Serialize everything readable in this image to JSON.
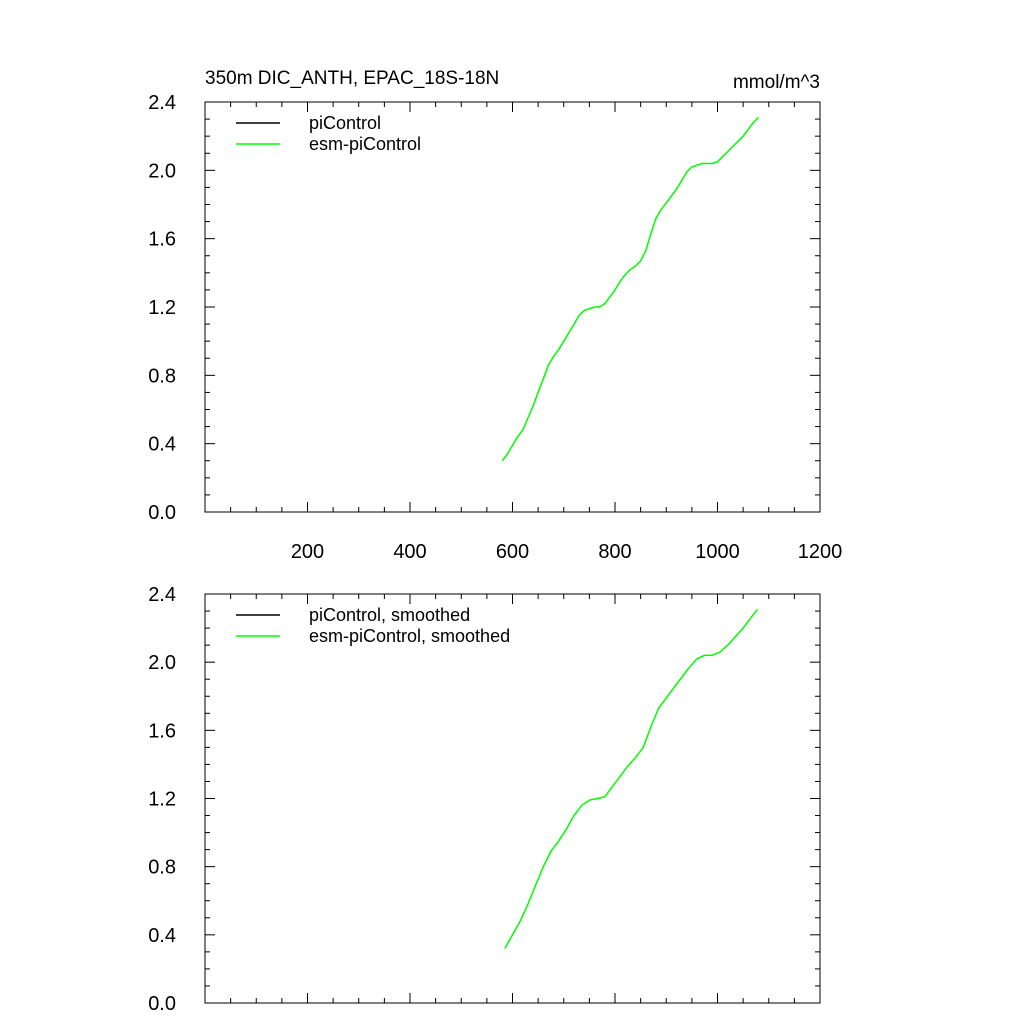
{
  "figure": {
    "title": "350m DIC_ANTH, EPAC_18S-18N",
    "units": "mmol/m^3"
  },
  "chart_data": [
    {
      "type": "line",
      "title": "350m DIC_ANTH, EPAC_18S-18N",
      "units_label": "mmol/m^3",
      "xlabel": "",
      "ylabel": "",
      "xlim": [
        0,
        1200
      ],
      "ylim": [
        0,
        2.4
      ],
      "x_ticks": [
        200,
        400,
        600,
        800,
        1000,
        1200
      ],
      "x_tick_labels": [
        "200",
        "400",
        "600",
        "800",
        "1000",
        "1200"
      ],
      "y_ticks": [
        0,
        0.4,
        0.8,
        1.2,
        1.6,
        2.0,
        2.4
      ],
      "y_tick_labels": [
        "0.0",
        "0.4",
        "0.8",
        "1.2",
        "1.6",
        "2.0",
        "2.4"
      ],
      "grid": false,
      "legend_position": "top-left",
      "series": [
        {
          "name": "piControl",
          "color": "#000000",
          "x": [],
          "y": []
        },
        {
          "name": "esm-piControl",
          "color": "#00ff00",
          "x": [
            580,
            590,
            600,
            610,
            620,
            630,
            640,
            650,
            660,
            670,
            680,
            690,
            700,
            710,
            720,
            730,
            740,
            750,
            760,
            770,
            780,
            790,
            800,
            810,
            820,
            830,
            840,
            850,
            860,
            870,
            880,
            890,
            900,
            910,
            920,
            930,
            940,
            950,
            960,
            970,
            980,
            990,
            1000,
            1010,
            1020,
            1030,
            1040,
            1050,
            1060,
            1070,
            1080
          ],
          "y": [
            0.3,
            0.34,
            0.39,
            0.44,
            0.48,
            0.55,
            0.62,
            0.7,
            0.78,
            0.86,
            0.91,
            0.95,
            1.0,
            1.05,
            1.1,
            1.15,
            1.18,
            1.19,
            1.2,
            1.2,
            1.22,
            1.26,
            1.3,
            1.35,
            1.39,
            1.42,
            1.44,
            1.47,
            1.53,
            1.63,
            1.72,
            1.77,
            1.81,
            1.85,
            1.89,
            1.94,
            1.99,
            2.02,
            2.03,
            2.04,
            2.04,
            2.04,
            2.05,
            2.08,
            2.11,
            2.14,
            2.17,
            2.2,
            2.24,
            2.28,
            2.31
          ]
        }
      ]
    },
    {
      "type": "line",
      "title": "",
      "xlabel": "",
      "ylabel": "",
      "xlim": [
        0,
        1200
      ],
      "ylim": [
        0,
        2.4
      ],
      "y_ticks": [
        0,
        0.4,
        0.8,
        1.2,
        1.6,
        2.0,
        2.4
      ],
      "y_tick_labels": [
        "0.0",
        "0.4",
        "0.8",
        "1.2",
        "1.6",
        "2.0",
        "2.4"
      ],
      "grid": false,
      "legend_position": "top-left",
      "series": [
        {
          "name": "piControl, smoothed",
          "color": "#000000",
          "x": [],
          "y": []
        },
        {
          "name": "esm-piControl, smoothed",
          "color": "#00ff00",
          "x": [
            585,
            600,
            615,
            630,
            645,
            660,
            675,
            690,
            705,
            720,
            735,
            750,
            765,
            780,
            795,
            810,
            825,
            840,
            855,
            870,
            885,
            900,
            915,
            930,
            945,
            960,
            975,
            990,
            1005,
            1020,
            1035,
            1050,
            1065,
            1078
          ],
          "y": [
            0.32,
            0.4,
            0.48,
            0.58,
            0.69,
            0.8,
            0.89,
            0.95,
            1.02,
            1.1,
            1.16,
            1.19,
            1.2,
            1.21,
            1.27,
            1.33,
            1.39,
            1.44,
            1.5,
            1.62,
            1.73,
            1.79,
            1.85,
            1.91,
            1.97,
            2.02,
            2.04,
            2.04,
            2.06,
            2.1,
            2.15,
            2.2,
            2.26,
            2.31
          ]
        }
      ]
    }
  ]
}
